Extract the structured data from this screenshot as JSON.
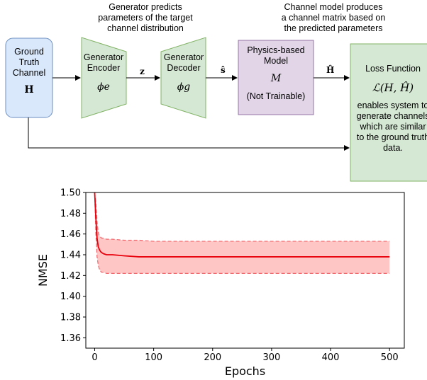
{
  "annotations": {
    "generator_note": [
      "Generator predicts",
      "parameters of the target",
      "channel distribution"
    ],
    "channel_note": [
      "Channel model produces",
      "a channel matrix based on",
      "the predicted parameters"
    ]
  },
  "blocks": {
    "ground_truth": {
      "lines": [
        "Ground",
        "Truth",
        "Channel"
      ],
      "symbol": "H"
    },
    "encoder": {
      "lines": [
        "Generator",
        "Encoder"
      ],
      "symbol": "ϕe"
    },
    "decoder": {
      "lines": [
        "Generator",
        "Decoder"
      ],
      "symbol": "ϕg"
    },
    "physics": {
      "lines": [
        "Physics-based",
        "Model"
      ],
      "symbol": "M",
      "note": "(Not Trainable)"
    },
    "loss": {
      "title": "Loss Function",
      "formula": "ℒ(H, Ĥ)",
      "desc": [
        "enables system to",
        "generate channels",
        "which are similar",
        "to the ground truth",
        "data."
      ]
    }
  },
  "edge_labels": {
    "z": "z",
    "s_hat": "ŝ",
    "h_hat": "Ĥ"
  },
  "colors": {
    "blue_fill": "#dae8fc",
    "blue_stroke": "#6c8ebf",
    "green_fill": "#d5e8d4",
    "green_stroke": "#82b366",
    "purple_fill": "#e1d5e7",
    "purple_stroke": "#9673a6",
    "line_color": "#e8000b",
    "band_color": "#ffb3b3"
  },
  "chart_data": {
    "type": "line",
    "title": "",
    "xlabel": "Epochs",
    "ylabel": "NMSE",
    "xlim": [
      -15,
      525
    ],
    "ylim": [
      1.35,
      1.5
    ],
    "xticks": [
      0,
      100,
      200,
      300,
      400,
      500
    ],
    "yticks": [
      1.36,
      1.38,
      1.4,
      1.42,
      1.44,
      1.46,
      1.48,
      1.5
    ],
    "grid": false,
    "series": [
      {
        "role": "mean",
        "x": [
          0,
          2,
          4,
          6,
          8,
          10,
          12,
          15,
          20,
          30,
          50,
          75,
          100,
          150,
          200,
          300,
          400,
          500
        ],
        "y": [
          1.5,
          1.475,
          1.456,
          1.448,
          1.445,
          1.443,
          1.442,
          1.441,
          1.44,
          1.44,
          1.439,
          1.438,
          1.438,
          1.438,
          1.438,
          1.438,
          1.438,
          1.438
        ]
      },
      {
        "role": "upper",
        "x": [
          0,
          2,
          4,
          6,
          8,
          10,
          12,
          15,
          20,
          30,
          50,
          75,
          100,
          150,
          200,
          300,
          400,
          500
        ],
        "y": [
          1.5,
          1.49,
          1.472,
          1.462,
          1.458,
          1.457,
          1.456,
          1.456,
          1.455,
          1.455,
          1.454,
          1.454,
          1.453,
          1.453,
          1.453,
          1.453,
          1.453,
          1.453
        ]
      },
      {
        "role": "lower",
        "x": [
          0,
          2,
          4,
          6,
          8,
          10,
          12,
          15,
          20,
          30,
          50,
          75,
          100,
          150,
          200,
          300,
          400,
          500
        ],
        "y": [
          1.5,
          1.46,
          1.438,
          1.43,
          1.426,
          1.424,
          1.423,
          1.423,
          1.422,
          1.422,
          1.422,
          1.422,
          1.422,
          1.422,
          1.422,
          1.422,
          1.422,
          1.422
        ]
      }
    ]
  }
}
